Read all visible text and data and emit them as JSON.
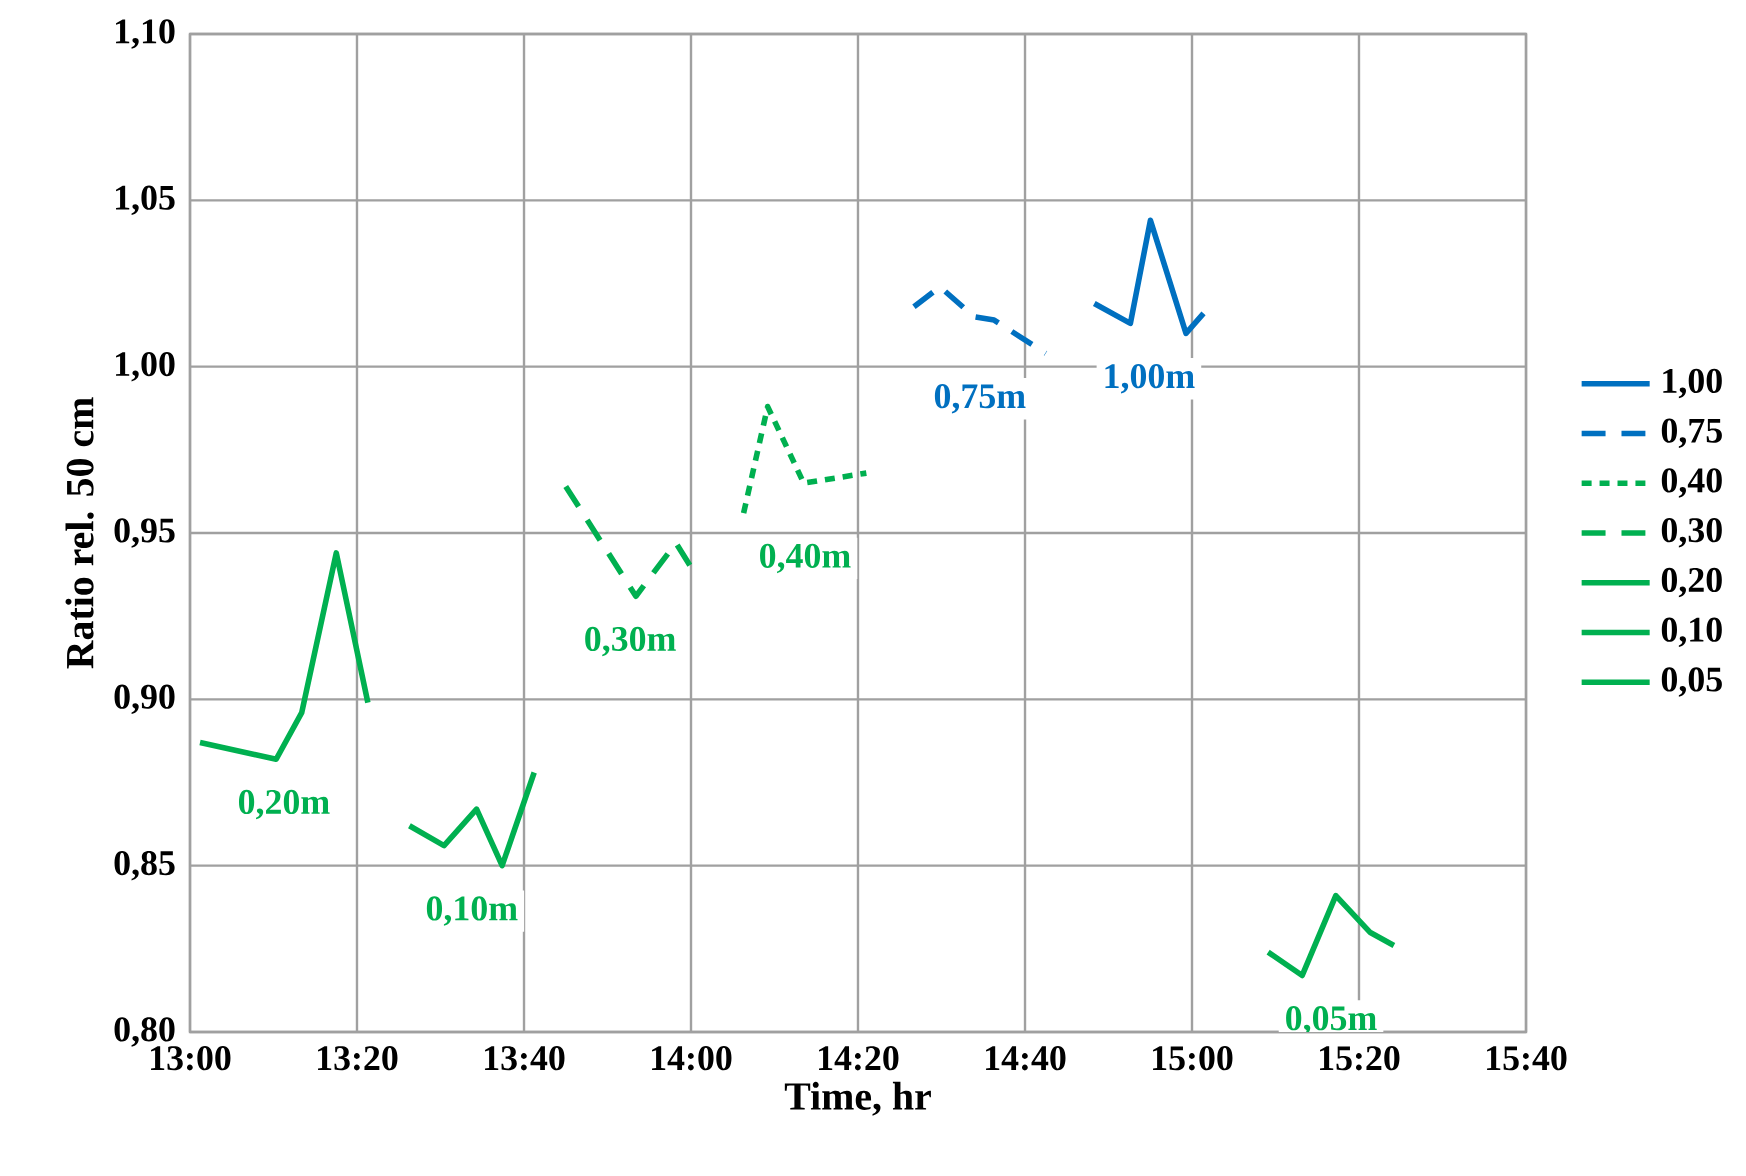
{
  "chart_data": {
    "type": "line",
    "xlabel": "Time, hr",
    "ylabel": "Ratio rel. 50 cm",
    "xlim": [
      13,
      15.6667
    ],
    "ylim": [
      0.8,
      1.1
    ],
    "xticks": [
      {
        "value": 13,
        "label": "13:00"
      },
      {
        "value": 13.3333,
        "label": "13:20"
      },
      {
        "value": 13.6667,
        "label": "13:40"
      },
      {
        "value": 14,
        "label": "14:00"
      },
      {
        "value": 14.3333,
        "label": "14:20"
      },
      {
        "value": 14.6667,
        "label": "14:40"
      },
      {
        "value": 15,
        "label": "15:00"
      },
      {
        "value": 15.3333,
        "label": "15:20"
      },
      {
        "value": 15.6667,
        "label": "15:40"
      }
    ],
    "yticks": [
      {
        "value": 0.8,
        "label": "0,80"
      },
      {
        "value": 0.85,
        "label": "0,85"
      },
      {
        "value": 0.9,
        "label": "0,90"
      },
      {
        "value": 0.95,
        "label": "0,95"
      },
      {
        "value": 1.0,
        "label": "1,00"
      },
      {
        "value": 1.05,
        "label": "1,05"
      },
      {
        "value": 1.1,
        "label": "1,10"
      }
    ],
    "grid": true,
    "legend": "right",
    "marker": "none",
    "series": [
      {
        "name": "1,00",
        "color": "#0070c0",
        "line_style": "solid",
        "x": [
          14.805,
          14.877,
          14.917,
          14.988,
          15.023
        ],
        "values": [
          1.019,
          1.013,
          1.044,
          1.01,
          1.016
        ]
      },
      {
        "name": "0,75",
        "color": "#0070c0",
        "line_style": "dashed",
        "x": [
          14.445,
          14.497,
          14.565,
          14.605,
          14.708
        ],
        "values": [
          1.018,
          1.024,
          1.015,
          1.014,
          1.004
        ]
      },
      {
        "name": "0,40",
        "color": "#00b050",
        "line_style": "dotted",
        "x": [
          14.105,
          14.153,
          14.225,
          14.35
        ],
        "values": [
          0.956,
          0.988,
          0.965,
          0.968
        ]
      },
      {
        "name": "0,30",
        "color": "#00b050",
        "line_style": "dashed",
        "x": [
          13.75,
          13.89,
          13.97,
          14.007
        ],
        "values": [
          0.964,
          0.931,
          0.947,
          0.938
        ]
      },
      {
        "name": "0,20",
        "color": "#00b050",
        "line_style": "solid",
        "x": [
          13.02,
          13.172,
          13.223,
          13.292,
          13.355
        ],
        "values": [
          0.887,
          0.882,
          0.896,
          0.944,
          0.899
        ]
      },
      {
        "name": "0,10",
        "color": "#00b050",
        "line_style": "solid",
        "x": [
          13.438,
          13.507,
          13.572,
          13.623,
          13.687
        ],
        "values": [
          0.862,
          0.856,
          0.867,
          0.85,
          0.878
        ]
      },
      {
        "name": "0,05",
        "color": "#00b050",
        "line_style": "solid",
        "x": [
          15.152,
          15.22,
          15.287,
          15.355,
          15.403
        ],
        "values": [
          0.824,
          0.817,
          0.841,
          0.83,
          0.826
        ]
      }
    ],
    "annotations": [
      "1,00m",
      "0,75m",
      "0,40m",
      "0,30m",
      "0,20m",
      "0,10m",
      "0,05m"
    ]
  }
}
